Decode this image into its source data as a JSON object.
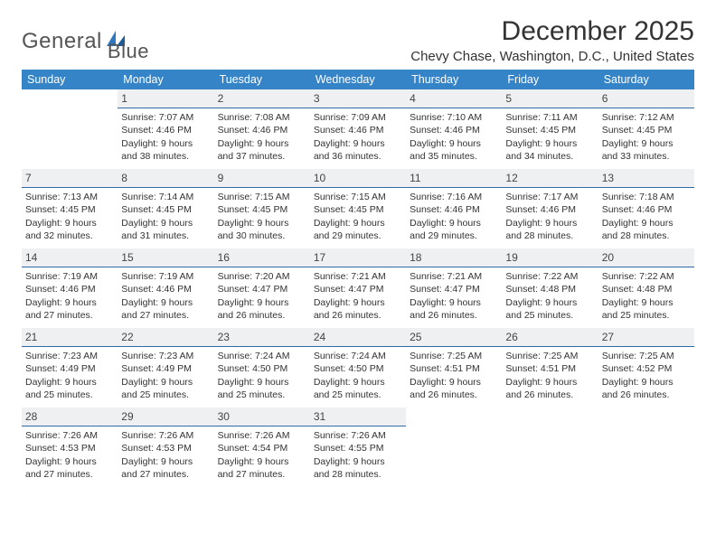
{
  "logo": {
    "word1": "General",
    "word2": "Blue"
  },
  "title": "December 2025",
  "location": "Chevy Chase, Washington, D.C., United States",
  "colors": {
    "header_bg": "#3684c8",
    "header_text": "#ffffff",
    "daynum_bg": "#eef0f1",
    "daynum_border": "#2f6aa5",
    "text": "#333333",
    "logo_gray": "#555555",
    "logo_blue": "#2f78bf",
    "page_bg": "#ffffff"
  },
  "typography": {
    "title_fontsize": 30,
    "location_fontsize": 15,
    "dayheader_fontsize": 12.5,
    "cell_fontsize": 10.5,
    "logo_fontsize": 24
  },
  "day_headers": [
    "Sunday",
    "Monday",
    "Tuesday",
    "Wednesday",
    "Thursday",
    "Friday",
    "Saturday"
  ],
  "start_day_index": 1,
  "days": [
    {
      "n": "1",
      "sr": "Sunrise: 7:07 AM",
      "ss": "Sunset: 4:46 PM",
      "d1": "Daylight: 9 hours",
      "d2": "and 38 minutes."
    },
    {
      "n": "2",
      "sr": "Sunrise: 7:08 AM",
      "ss": "Sunset: 4:46 PM",
      "d1": "Daylight: 9 hours",
      "d2": "and 37 minutes."
    },
    {
      "n": "3",
      "sr": "Sunrise: 7:09 AM",
      "ss": "Sunset: 4:46 PM",
      "d1": "Daylight: 9 hours",
      "d2": "and 36 minutes."
    },
    {
      "n": "4",
      "sr": "Sunrise: 7:10 AM",
      "ss": "Sunset: 4:46 PM",
      "d1": "Daylight: 9 hours",
      "d2": "and 35 minutes."
    },
    {
      "n": "5",
      "sr": "Sunrise: 7:11 AM",
      "ss": "Sunset: 4:45 PM",
      "d1": "Daylight: 9 hours",
      "d2": "and 34 minutes."
    },
    {
      "n": "6",
      "sr": "Sunrise: 7:12 AM",
      "ss": "Sunset: 4:45 PM",
      "d1": "Daylight: 9 hours",
      "d2": "and 33 minutes."
    },
    {
      "n": "7",
      "sr": "Sunrise: 7:13 AM",
      "ss": "Sunset: 4:45 PM",
      "d1": "Daylight: 9 hours",
      "d2": "and 32 minutes."
    },
    {
      "n": "8",
      "sr": "Sunrise: 7:14 AM",
      "ss": "Sunset: 4:45 PM",
      "d1": "Daylight: 9 hours",
      "d2": "and 31 minutes."
    },
    {
      "n": "9",
      "sr": "Sunrise: 7:15 AM",
      "ss": "Sunset: 4:45 PM",
      "d1": "Daylight: 9 hours",
      "d2": "and 30 minutes."
    },
    {
      "n": "10",
      "sr": "Sunrise: 7:15 AM",
      "ss": "Sunset: 4:45 PM",
      "d1": "Daylight: 9 hours",
      "d2": "and 29 minutes."
    },
    {
      "n": "11",
      "sr": "Sunrise: 7:16 AM",
      "ss": "Sunset: 4:46 PM",
      "d1": "Daylight: 9 hours",
      "d2": "and 29 minutes."
    },
    {
      "n": "12",
      "sr": "Sunrise: 7:17 AM",
      "ss": "Sunset: 4:46 PM",
      "d1": "Daylight: 9 hours",
      "d2": "and 28 minutes."
    },
    {
      "n": "13",
      "sr": "Sunrise: 7:18 AM",
      "ss": "Sunset: 4:46 PM",
      "d1": "Daylight: 9 hours",
      "d2": "and 28 minutes."
    },
    {
      "n": "14",
      "sr": "Sunrise: 7:19 AM",
      "ss": "Sunset: 4:46 PM",
      "d1": "Daylight: 9 hours",
      "d2": "and 27 minutes."
    },
    {
      "n": "15",
      "sr": "Sunrise: 7:19 AM",
      "ss": "Sunset: 4:46 PM",
      "d1": "Daylight: 9 hours",
      "d2": "and 27 minutes."
    },
    {
      "n": "16",
      "sr": "Sunrise: 7:20 AM",
      "ss": "Sunset: 4:47 PM",
      "d1": "Daylight: 9 hours",
      "d2": "and 26 minutes."
    },
    {
      "n": "17",
      "sr": "Sunrise: 7:21 AM",
      "ss": "Sunset: 4:47 PM",
      "d1": "Daylight: 9 hours",
      "d2": "and 26 minutes."
    },
    {
      "n": "18",
      "sr": "Sunrise: 7:21 AM",
      "ss": "Sunset: 4:47 PM",
      "d1": "Daylight: 9 hours",
      "d2": "and 26 minutes."
    },
    {
      "n": "19",
      "sr": "Sunrise: 7:22 AM",
      "ss": "Sunset: 4:48 PM",
      "d1": "Daylight: 9 hours",
      "d2": "and 25 minutes."
    },
    {
      "n": "20",
      "sr": "Sunrise: 7:22 AM",
      "ss": "Sunset: 4:48 PM",
      "d1": "Daylight: 9 hours",
      "d2": "and 25 minutes."
    },
    {
      "n": "21",
      "sr": "Sunrise: 7:23 AM",
      "ss": "Sunset: 4:49 PM",
      "d1": "Daylight: 9 hours",
      "d2": "and 25 minutes."
    },
    {
      "n": "22",
      "sr": "Sunrise: 7:23 AM",
      "ss": "Sunset: 4:49 PM",
      "d1": "Daylight: 9 hours",
      "d2": "and 25 minutes."
    },
    {
      "n": "23",
      "sr": "Sunrise: 7:24 AM",
      "ss": "Sunset: 4:50 PM",
      "d1": "Daylight: 9 hours",
      "d2": "and 25 minutes."
    },
    {
      "n": "24",
      "sr": "Sunrise: 7:24 AM",
      "ss": "Sunset: 4:50 PM",
      "d1": "Daylight: 9 hours",
      "d2": "and 25 minutes."
    },
    {
      "n": "25",
      "sr": "Sunrise: 7:25 AM",
      "ss": "Sunset: 4:51 PM",
      "d1": "Daylight: 9 hours",
      "d2": "and 26 minutes."
    },
    {
      "n": "26",
      "sr": "Sunrise: 7:25 AM",
      "ss": "Sunset: 4:51 PM",
      "d1": "Daylight: 9 hours",
      "d2": "and 26 minutes."
    },
    {
      "n": "27",
      "sr": "Sunrise: 7:25 AM",
      "ss": "Sunset: 4:52 PM",
      "d1": "Daylight: 9 hours",
      "d2": "and 26 minutes."
    },
    {
      "n": "28",
      "sr": "Sunrise: 7:26 AM",
      "ss": "Sunset: 4:53 PM",
      "d1": "Daylight: 9 hours",
      "d2": "and 27 minutes."
    },
    {
      "n": "29",
      "sr": "Sunrise: 7:26 AM",
      "ss": "Sunset: 4:53 PM",
      "d1": "Daylight: 9 hours",
      "d2": "and 27 minutes."
    },
    {
      "n": "30",
      "sr": "Sunrise: 7:26 AM",
      "ss": "Sunset: 4:54 PM",
      "d1": "Daylight: 9 hours",
      "d2": "and 27 minutes."
    },
    {
      "n": "31",
      "sr": "Sunrise: 7:26 AM",
      "ss": "Sunset: 4:55 PM",
      "d1": "Daylight: 9 hours",
      "d2": "and 28 minutes."
    }
  ]
}
